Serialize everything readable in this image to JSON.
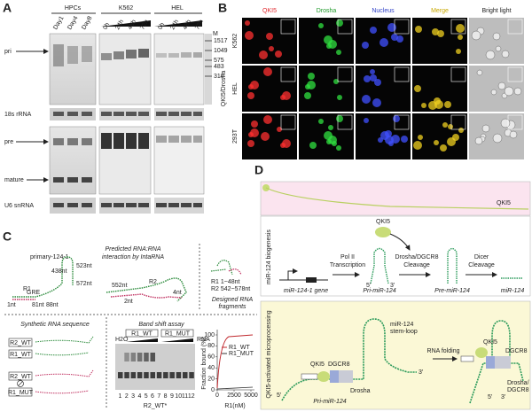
{
  "panel_a": {
    "label": "A",
    "groups": [
      "HPCs",
      "K562",
      "HEL"
    ],
    "lanes": [
      "Day1",
      "Day4",
      "Day8",
      "0h",
      "24h",
      "48h",
      "72h",
      "0h",
      "24h",
      "48h",
      "72h"
    ],
    "marker": "M",
    "sizes": [
      1517,
      1049,
      575,
      483,
      310
    ],
    "rows": [
      "pri",
      "18s rRNA",
      "pre",
      "mature",
      "U6 snRNA"
    ]
  },
  "panel_b": {
    "label": "B",
    "columns": [
      "QKI5",
      "Drosha",
      "Nucleus",
      "Merge",
      "Bright light"
    ],
    "rows": [
      "K562",
      "HEL",
      "293T"
    ],
    "side_label": "QKI5/Drosha"
  },
  "panel_c": {
    "label": "C",
    "construct": "primary-124-1",
    "prediction": [
      "Predicted RNA:RNA",
      "interaction by IntaRNA"
    ],
    "fragments_title": [
      "Designed RNA",
      "fragments"
    ],
    "fragments": [
      "R1 1~48nt",
      "R2 542~578nt"
    ],
    "structure_labels": [
      "GRE",
      "1nt",
      "81nt",
      "88nt",
      "438nt",
      "523nt",
      "572nt",
      "R1",
      "R2",
      "552nt",
      "2nt",
      "4nt"
    ],
    "synthetic_title": "Synthetic RNA sequence",
    "synthetic_rows": [
      "R2_WT",
      "R1_WT",
      "R2_WT",
      "R1_MUT"
    ],
    "assay_title": "Band shift assay",
    "gel_groups": [
      "R1_WT",
      "R1_MUT"
    ],
    "water": "H2O",
    "rna": "RNA",
    "lane_numbers": [
      1,
      2,
      3,
      4,
      5,
      6,
      7,
      8,
      9,
      10,
      11,
      12
    ],
    "probe": "R2_WT*",
    "plot": {
      "y_label": "Fraction bound (%)",
      "x_label": "R1(nM)",
      "yticks": [
        0,
        20,
        40,
        60,
        80,
        100
      ],
      "xticks": [
        0,
        2500,
        5000
      ],
      "legend": [
        "R1_WT",
        "R1_MUT"
      ]
    }
  },
  "panel_d": {
    "label": "D",
    "bar_label": "QKI5",
    "section1": "miR-124 biogenesis",
    "qki5": "QKI5",
    "steps": [
      "Pol II",
      "Transcription",
      "Drosha/DGCR8",
      "Cleavage",
      "Dicer",
      "Cleavage"
    ],
    "stages": [
      "miR-124-1 gene",
      "Pri-miR-124",
      "Pre-miR-124",
      "miR-124"
    ],
    "ends": [
      "5'",
      "3'"
    ],
    "section2": "QKI5-activated microprocessing",
    "left": {
      "stem_loop": [
        "miR-124",
        "stem-loop"
      ],
      "qki5": "QKI5",
      "dgcr8": "DGCR8",
      "drosha": "Drosha",
      "name": "Pri-miR-124",
      "ends": [
        "5'",
        "3'"
      ]
    },
    "folding": "RNA folding",
    "right": {
      "qki5": "QKI5",
      "dgcr8": "DGCR8",
      "drosha": [
        "Drosha/",
        "DGCR8"
      ],
      "ends": [
        "5'",
        "3'"
      ]
    }
  }
}
